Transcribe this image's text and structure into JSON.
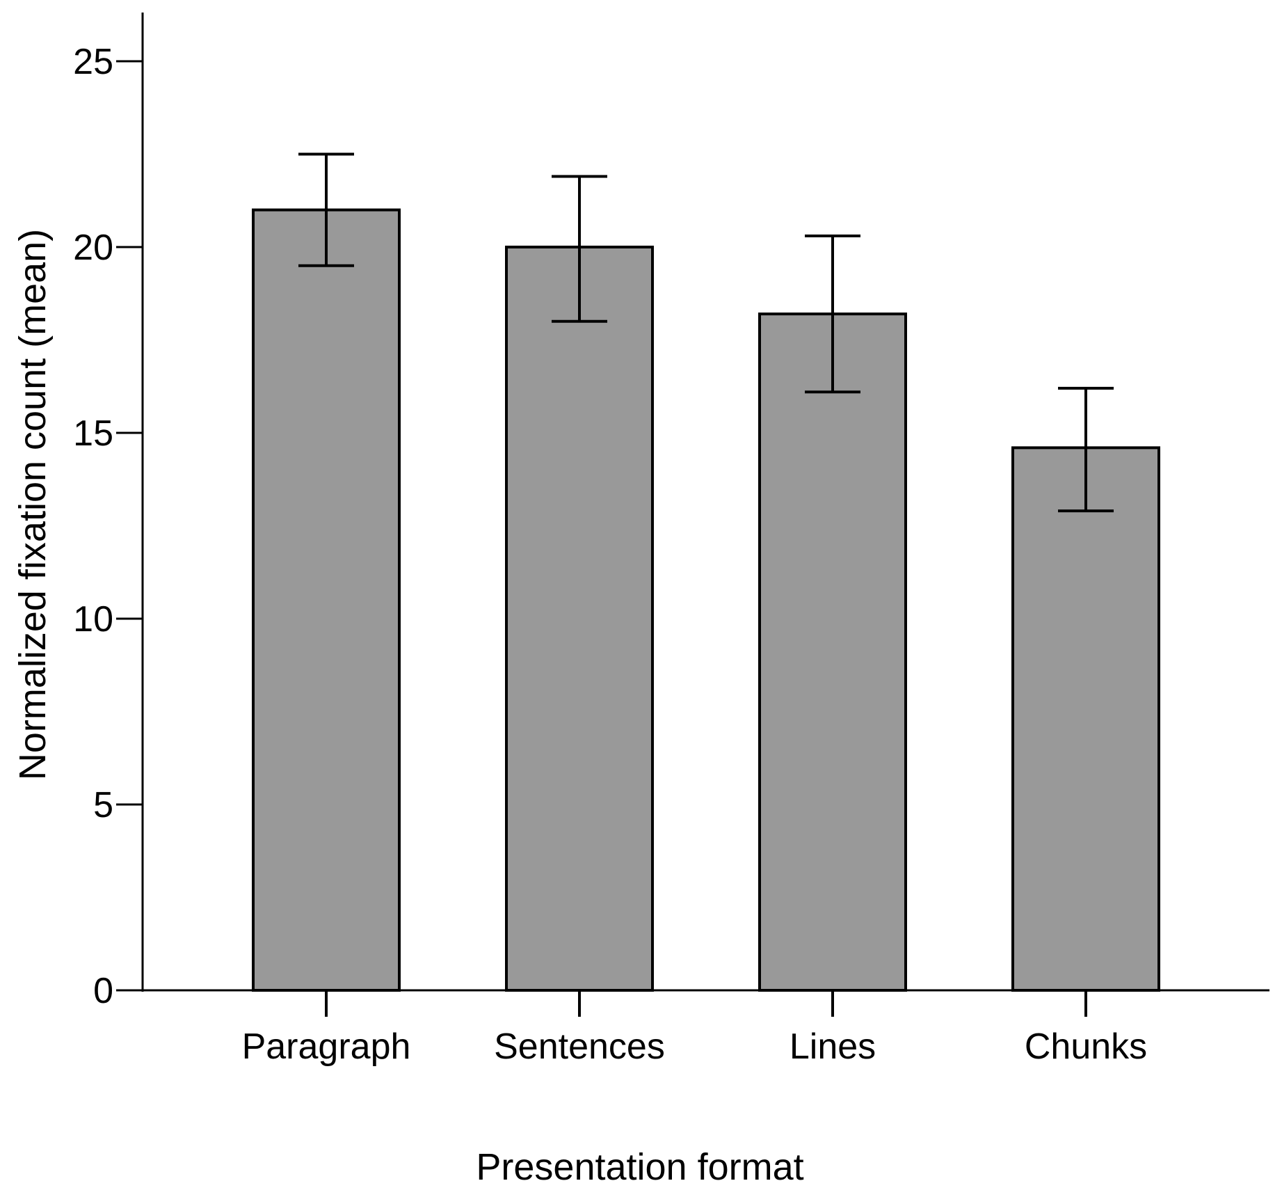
{
  "chart_data": {
    "type": "bar",
    "title": "",
    "xlabel": "Presentation format",
    "ylabel": "Normalized fixation count (mean)",
    "categories": [
      "Paragraph",
      "Sentences",
      "Lines",
      "Chunks"
    ],
    "values": [
      21.0,
      20.0,
      18.2,
      14.6
    ],
    "error_low": [
      19.5,
      18.0,
      16.1,
      12.9
    ],
    "error_high": [
      22.5,
      21.9,
      20.3,
      16.2
    ],
    "ylim": [
      0,
      26
    ],
    "yticks": [
      0,
      5,
      10,
      15,
      20,
      25
    ],
    "ytick_labels": [
      "0",
      "5",
      "10",
      "15",
      "20",
      "25"
    ],
    "grid": false,
    "bar_color": "#999999",
    "edge_color": "#000000"
  }
}
